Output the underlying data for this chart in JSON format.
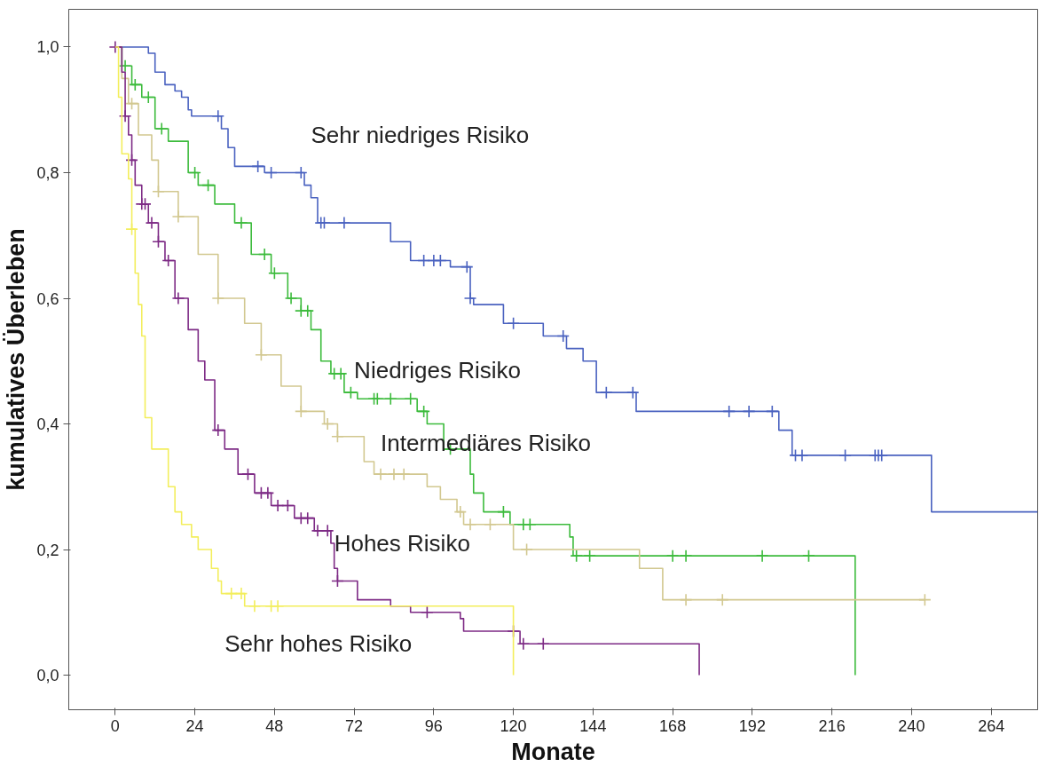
{
  "chart_data": {
    "type": "step",
    "xlabel": "Monate",
    "ylabel": "kumulatives Überleben",
    "xlim": [
      -14,
      278
    ],
    "ylim": [
      -0.055,
      1.06
    ],
    "xticks": [
      0,
      24,
      48,
      72,
      96,
      120,
      144,
      168,
      192,
      216,
      240,
      264
    ],
    "yticks": [
      {
        "value": 0,
        "label": "0,0"
      },
      {
        "value": 0.2,
        "label": "0,2"
      },
      {
        "value": 0.4,
        "label": "0,4"
      },
      {
        "value": 0.6,
        "label": "0,6"
      },
      {
        "value": 0.8,
        "label": "0,8"
      },
      {
        "value": 1.0,
        "label": "1,0"
      }
    ],
    "grid": false,
    "series": [
      {
        "name": "Sehr niedriges Risiko",
        "color": "#4a62c0",
        "x": [
          0,
          10,
          12,
          15,
          18,
          20,
          22,
          23,
          32,
          34,
          36,
          45,
          57,
          59,
          61,
          83,
          89,
          101,
          107,
          108,
          117,
          129,
          136,
          141,
          145,
          157,
          200,
          204,
          246,
          278
        ],
        "values": [
          1.0,
          0.99,
          0.96,
          0.94,
          0.93,
          0.92,
          0.9,
          0.89,
          0.87,
          0.84,
          0.81,
          0.8,
          0.78,
          0.76,
          0.72,
          0.69,
          0.66,
          0.65,
          0.6,
          0.59,
          0.56,
          0.54,
          0.52,
          0.5,
          0.45,
          0.42,
          0.39,
          0.35,
          0.26,
          0.26
        ]
      },
      {
        "type": "scatter",
        "marker": "cross",
        "color": "#4a62c0",
        "x": [
          31,
          43,
          47,
          56,
          62,
          63,
          69,
          93,
          96,
          98,
          106,
          107,
          120,
          135,
          148,
          156,
          185,
          191,
          198,
          205,
          207,
          220,
          229,
          230,
          231
        ],
        "values": [
          0.89,
          0.81,
          0.8,
          0.8,
          0.72,
          0.72,
          0.72,
          0.66,
          0.66,
          0.66,
          0.65,
          0.6,
          0.56,
          0.54,
          0.45,
          0.45,
          0.42,
          0.42,
          0.42,
          0.35,
          0.35,
          0.35,
          0.35,
          0.35,
          0.35
        ]
      },
      {
        "name": "Niedriges Risiko",
        "color": "#3cbb3c",
        "x": [
          0,
          2,
          5,
          8,
          12,
          16,
          22,
          25,
          30,
          36,
          41,
          47,
          52,
          56,
          59,
          62,
          65,
          69,
          73,
          91,
          94,
          99,
          107,
          108,
          111,
          119,
          137,
          138,
          223
        ],
        "values": [
          1.0,
          0.97,
          0.94,
          0.92,
          0.87,
          0.85,
          0.8,
          0.78,
          0.75,
          0.72,
          0.67,
          0.64,
          0.6,
          0.58,
          0.55,
          0.5,
          0.48,
          0.45,
          0.44,
          0.42,
          0.4,
          0.36,
          0.32,
          0.29,
          0.26,
          0.24,
          0.22,
          0.19,
          0.0
        ]
      },
      {
        "type": "scatter",
        "marker": "cross",
        "color": "#3cbb3c",
        "x": [
          3,
          6,
          10,
          14,
          24,
          28,
          38,
          45,
          48,
          53,
          56,
          58,
          66,
          68,
          71,
          78,
          79,
          83,
          89,
          93,
          101,
          117,
          123,
          125,
          139,
          143,
          168,
          172,
          195,
          209
        ],
        "values": [
          0.97,
          0.94,
          0.92,
          0.87,
          0.8,
          0.78,
          0.72,
          0.67,
          0.64,
          0.6,
          0.58,
          0.58,
          0.48,
          0.48,
          0.45,
          0.44,
          0.44,
          0.44,
          0.44,
          0.42,
          0.36,
          0.26,
          0.24,
          0.24,
          0.19,
          0.19,
          0.19,
          0.19,
          0.19,
          0.19
        ]
      },
      {
        "name": "Intermediäres Risiko",
        "color": "#d2c890",
        "x": [
          0,
          2,
          4,
          7,
          11,
          13,
          19,
          25,
          31,
          39,
          44,
          50,
          56,
          63,
          67,
          75,
          78,
          94,
          98,
          103,
          105,
          120,
          158,
          165,
          244
        ],
        "values": [
          1.0,
          0.95,
          0.91,
          0.86,
          0.82,
          0.77,
          0.73,
          0.67,
          0.6,
          0.56,
          0.51,
          0.46,
          0.42,
          0.4,
          0.38,
          0.34,
          0.32,
          0.3,
          0.28,
          0.26,
          0.24,
          0.2,
          0.17,
          0.12,
          0.12
        ]
      },
      {
        "type": "scatter",
        "marker": "cross",
        "color": "#d2c890",
        "x": [
          5,
          13,
          19,
          31,
          44,
          56,
          64,
          67,
          80,
          84,
          87,
          104,
          107,
          113,
          124,
          172,
          183,
          244
        ],
        "values": [
          0.91,
          0.77,
          0.73,
          0.6,
          0.51,
          0.42,
          0.4,
          0.38,
          0.32,
          0.32,
          0.32,
          0.26,
          0.24,
          0.24,
          0.2,
          0.12,
          0.12,
          0.12
        ]
      },
      {
        "name": "Hohes Risiko",
        "color": "#7d2a85",
        "x": [
          0,
          2,
          3,
          4,
          5,
          6,
          8,
          10,
          13,
          15,
          18,
          22,
          25,
          27,
          30,
          33,
          37,
          42,
          47,
          54,
          60,
          65,
          66,
          67,
          73,
          83,
          89,
          104,
          105,
          122,
          176
        ],
        "values": [
          1.0,
          0.96,
          0.89,
          0.86,
          0.82,
          0.78,
          0.75,
          0.72,
          0.69,
          0.66,
          0.6,
          0.55,
          0.5,
          0.47,
          0.39,
          0.36,
          0.32,
          0.29,
          0.27,
          0.25,
          0.23,
          0.21,
          0.17,
          0.15,
          0.12,
          0.11,
          0.1,
          0.09,
          0.07,
          0.05,
          0.0
        ]
      },
      {
        "type": "scatter",
        "marker": "cross",
        "color": "#7d2a85",
        "x": [
          0,
          3,
          5,
          8,
          9,
          11,
          13,
          16,
          19,
          31,
          40,
          44,
          46,
          49,
          52,
          56,
          58,
          61,
          64,
          67,
          94,
          120,
          123,
          129
        ],
        "values": [
          1.0,
          0.89,
          0.82,
          0.75,
          0.75,
          0.72,
          0.69,
          0.66,
          0.6,
          0.39,
          0.32,
          0.29,
          0.29,
          0.27,
          0.27,
          0.25,
          0.25,
          0.23,
          0.23,
          0.15,
          0.1,
          0.07,
          0.05,
          0.05
        ]
      },
      {
        "name": "Sehr hohes Risiko",
        "color": "#f3ee5c",
        "x": [
          0,
          1,
          2,
          4,
          5,
          6,
          7,
          8,
          9,
          11,
          16,
          18,
          20,
          23,
          25,
          29,
          31,
          32,
          39,
          120
        ],
        "values": [
          1.0,
          0.92,
          0.83,
          0.79,
          0.71,
          0.64,
          0.59,
          0.54,
          0.41,
          0.36,
          0.3,
          0.26,
          0.24,
          0.22,
          0.2,
          0.17,
          0.15,
          0.13,
          0.11,
          0.0
        ]
      },
      {
        "type": "scatter",
        "marker": "cross",
        "color": "#f3ee5c",
        "x": [
          5,
          35,
          38,
          42,
          47,
          49
        ],
        "values": [
          0.71,
          0.13,
          0.13,
          0.11,
          0.11,
          0.11
        ]
      }
    ]
  }
}
